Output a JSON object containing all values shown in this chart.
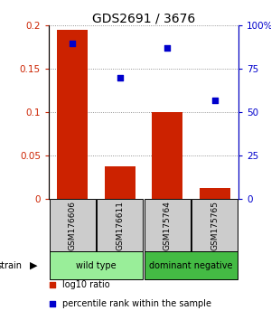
{
  "title": "GDS2691 / 3676",
  "samples": [
    "GSM176606",
    "GSM176611",
    "GSM175764",
    "GSM175765"
  ],
  "bar_values": [
    0.195,
    0.038,
    0.1,
    0.013
  ],
  "percentile_values": [
    90,
    70,
    87,
    57
  ],
  "bar_color": "#cc2200",
  "percentile_color": "#0000cc",
  "ylim_left": [
    0,
    0.2
  ],
  "ylim_right": [
    0,
    100
  ],
  "yticks_left": [
    0,
    0.05,
    0.1,
    0.15,
    0.2
  ],
  "yticks_right": [
    0,
    25,
    50,
    75,
    100
  ],
  "ytick_labels_left": [
    "0",
    "0.05",
    "0.1",
    "0.15",
    "0.2"
  ],
  "ytick_labels_right": [
    "0",
    "25",
    "50",
    "75",
    "100%"
  ],
  "groups": [
    {
      "label": "wild type",
      "indices": [
        0,
        1
      ],
      "color": "#99ee99"
    },
    {
      "label": "dominant negative",
      "indices": [
        2,
        3
      ],
      "color": "#44bb44"
    }
  ],
  "legend_items": [
    {
      "label": "log10 ratio",
      "color": "#cc2200"
    },
    {
      "label": "percentile rank within the sample",
      "color": "#0000cc"
    }
  ],
  "bg_color": "#ffffff",
  "sample_box_color": "#cccccc",
  "dotted_line_color": "#777777",
  "xlim": [
    -0.5,
    3.5
  ]
}
